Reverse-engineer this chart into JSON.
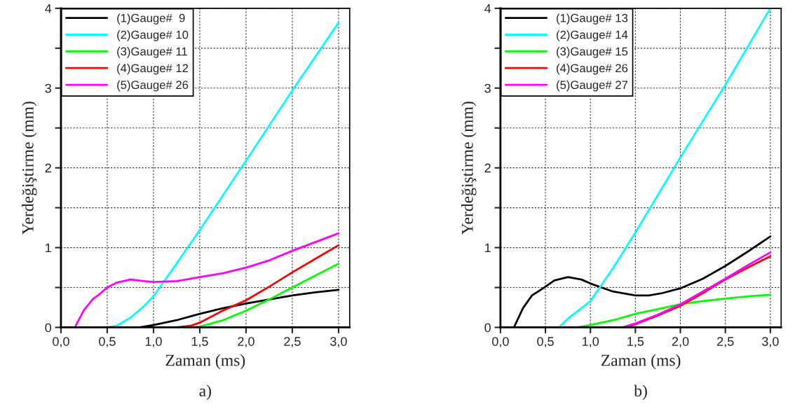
{
  "chart_data": [
    {
      "type": "line",
      "xlabel": "Zaman (ms)",
      "ylabel": "Yerdeğiştirme (mm)",
      "annotations": [
        "a)"
      ],
      "legend": "top left",
      "grid": true,
      "xlim": [
        0,
        3.12
      ],
      "ylim": [
        0,
        4
      ],
      "xticks": [
        {
          "value": 0,
          "label": "0,0"
        },
        {
          "value": 0.5,
          "label": "0,5"
        },
        {
          "value": 1,
          "label": "1,0"
        },
        {
          "value": 1.5,
          "label": "1,5"
        },
        {
          "value": 2,
          "label": "2,0"
        },
        {
          "value": 2.5,
          "label": "2,5"
        },
        {
          "value": 3,
          "label": "3,0"
        }
      ],
      "yticks": [
        0,
        {
          "value": 0.5,
          "label": null
        },
        1,
        {
          "value": 1.5,
          "label": null
        },
        2,
        {
          "value": 2.5,
          "label": null
        },
        3,
        {
          "value": 3.5,
          "label": null
        },
        4
      ],
      "series": [
        {
          "name": "(1)Gauge#  9",
          "color": "#000000",
          "x": [
            0,
            0.85,
            1.0,
            1.25,
            1.5,
            1.75,
            2.0,
            2.25,
            2.5,
            2.75,
            3.0
          ],
          "values": [
            0,
            0,
            0.03,
            0.09,
            0.17,
            0.24,
            0.3,
            0.35,
            0.4,
            0.44,
            0.47
          ]
        },
        {
          "name": "(2)Gauge# 10",
          "color": "#00ffff",
          "x": [
            0,
            0.5,
            0.6,
            0.75,
            0.9,
            1.0,
            1.25,
            1.5,
            2.0,
            2.5,
            3.0
          ],
          "values": [
            0,
            0,
            0.02,
            0.12,
            0.27,
            0.39,
            0.8,
            1.22,
            2.09,
            2.97,
            3.82
          ]
        },
        {
          "name": "(3)Gauge# 11",
          "color": "#00ff00",
          "x": [
            0,
            1.4,
            1.5,
            1.75,
            2.0,
            2.25,
            2.5,
            2.75,
            3.0
          ],
          "values": [
            0,
            0,
            0.01,
            0.09,
            0.21,
            0.35,
            0.5,
            0.65,
            0.8
          ]
        },
        {
          "name": "(4)Gauge# 12",
          "color": "#ff0000",
          "x": [
            0,
            1.25,
            1.4,
            1.5,
            1.75,
            2.0,
            2.25,
            2.5,
            2.75,
            3.0
          ],
          "values": [
            0,
            0,
            0.02,
            0.06,
            0.21,
            0.34,
            0.51,
            0.69,
            0.86,
            1.03
          ]
        },
        {
          "name": "(5)Gauge# 26",
          "color": "#ff00ff",
          "x": [
            0,
            0.15,
            0.25,
            0.35,
            0.4,
            0.5,
            0.6,
            0.75,
            0.9,
            1.0,
            1.25,
            1.5,
            1.75,
            2.0,
            2.25,
            2.5,
            2.75,
            3.0
          ],
          "values": [
            0,
            0,
            0.22,
            0.36,
            0.4,
            0.5,
            0.56,
            0.6,
            0.58,
            0.57,
            0.58,
            0.63,
            0.68,
            0.75,
            0.84,
            0.96,
            1.07,
            1.18
          ]
        }
      ]
    },
    {
      "type": "line",
      "xlabel": "Zaman (ms)",
      "ylabel": "Yerdeğiştirme (mm)",
      "annotations": [
        "b)"
      ],
      "legend": "top left",
      "grid": true,
      "xlim": [
        0,
        3.12
      ],
      "ylim": [
        0,
        4
      ],
      "xticks": [
        {
          "value": 0,
          "label": "0,0"
        },
        {
          "value": 0.5,
          "label": "0,5"
        },
        {
          "value": 1,
          "label": "1,0"
        },
        {
          "value": 1.5,
          "label": "1,5"
        },
        {
          "value": 2,
          "label": "2,0"
        },
        {
          "value": 2.5,
          "label": "2,5"
        },
        {
          "value": 3,
          "label": "3,0"
        }
      ],
      "yticks": [
        0,
        {
          "value": 0.5,
          "label": null
        },
        1,
        {
          "value": 1.5,
          "label": null
        },
        2,
        {
          "value": 2.5,
          "label": null
        },
        3,
        {
          "value": 3.5,
          "label": null
        },
        4
      ],
      "series": [
        {
          "name": "(1)Gauge# 13",
          "color": "#000000",
          "x": [
            0,
            0.15,
            0.25,
            0.35,
            0.5,
            0.6,
            0.75,
            0.9,
            1.0,
            1.25,
            1.5,
            1.65,
            1.8,
            2.0,
            2.25,
            2.5,
            2.75,
            3.0
          ],
          "values": [
            0,
            0,
            0.24,
            0.4,
            0.51,
            0.59,
            0.63,
            0.6,
            0.55,
            0.45,
            0.4,
            0.4,
            0.43,
            0.49,
            0.61,
            0.77,
            0.95,
            1.14
          ]
        },
        {
          "name": "(2)Gauge# 14",
          "color": "#00ffff",
          "x": [
            0,
            0.65,
            0.75,
            0.9,
            1.0,
            1.25,
            1.5,
            2.0,
            2.5,
            3.0
          ],
          "values": [
            0,
            0,
            0.11,
            0.24,
            0.33,
            0.74,
            1.19,
            2.13,
            3.04,
            4.0
          ]
        },
        {
          "name": "(3)Gauge# 15",
          "color": "#00ff00",
          "x": [
            0,
            0.85,
            1.0,
            1.25,
            1.5,
            1.75,
            2.0,
            2.25,
            2.5,
            2.75,
            3.0
          ],
          "values": [
            0,
            0,
            0.03,
            0.09,
            0.17,
            0.23,
            0.29,
            0.33,
            0.36,
            0.39,
            0.41
          ]
        },
        {
          "name": "(4)Gauge# 26",
          "color": "#ff0000",
          "x": [
            0,
            1.4,
            1.5,
            1.75,
            2.0,
            2.25,
            2.5,
            2.75,
            3.0
          ],
          "values": [
            0,
            0,
            0.04,
            0.15,
            0.27,
            0.43,
            0.6,
            0.75,
            0.89
          ]
        },
        {
          "name": "(5)Gauge# 27",
          "color": "#ff00ff",
          "x": [
            0,
            1.35,
            1.5,
            1.75,
            2.0,
            2.25,
            2.5,
            2.75,
            3.0
          ],
          "values": [
            0,
            0,
            0.05,
            0.16,
            0.29,
            0.45,
            0.61,
            0.78,
            0.94
          ]
        }
      ]
    }
  ]
}
